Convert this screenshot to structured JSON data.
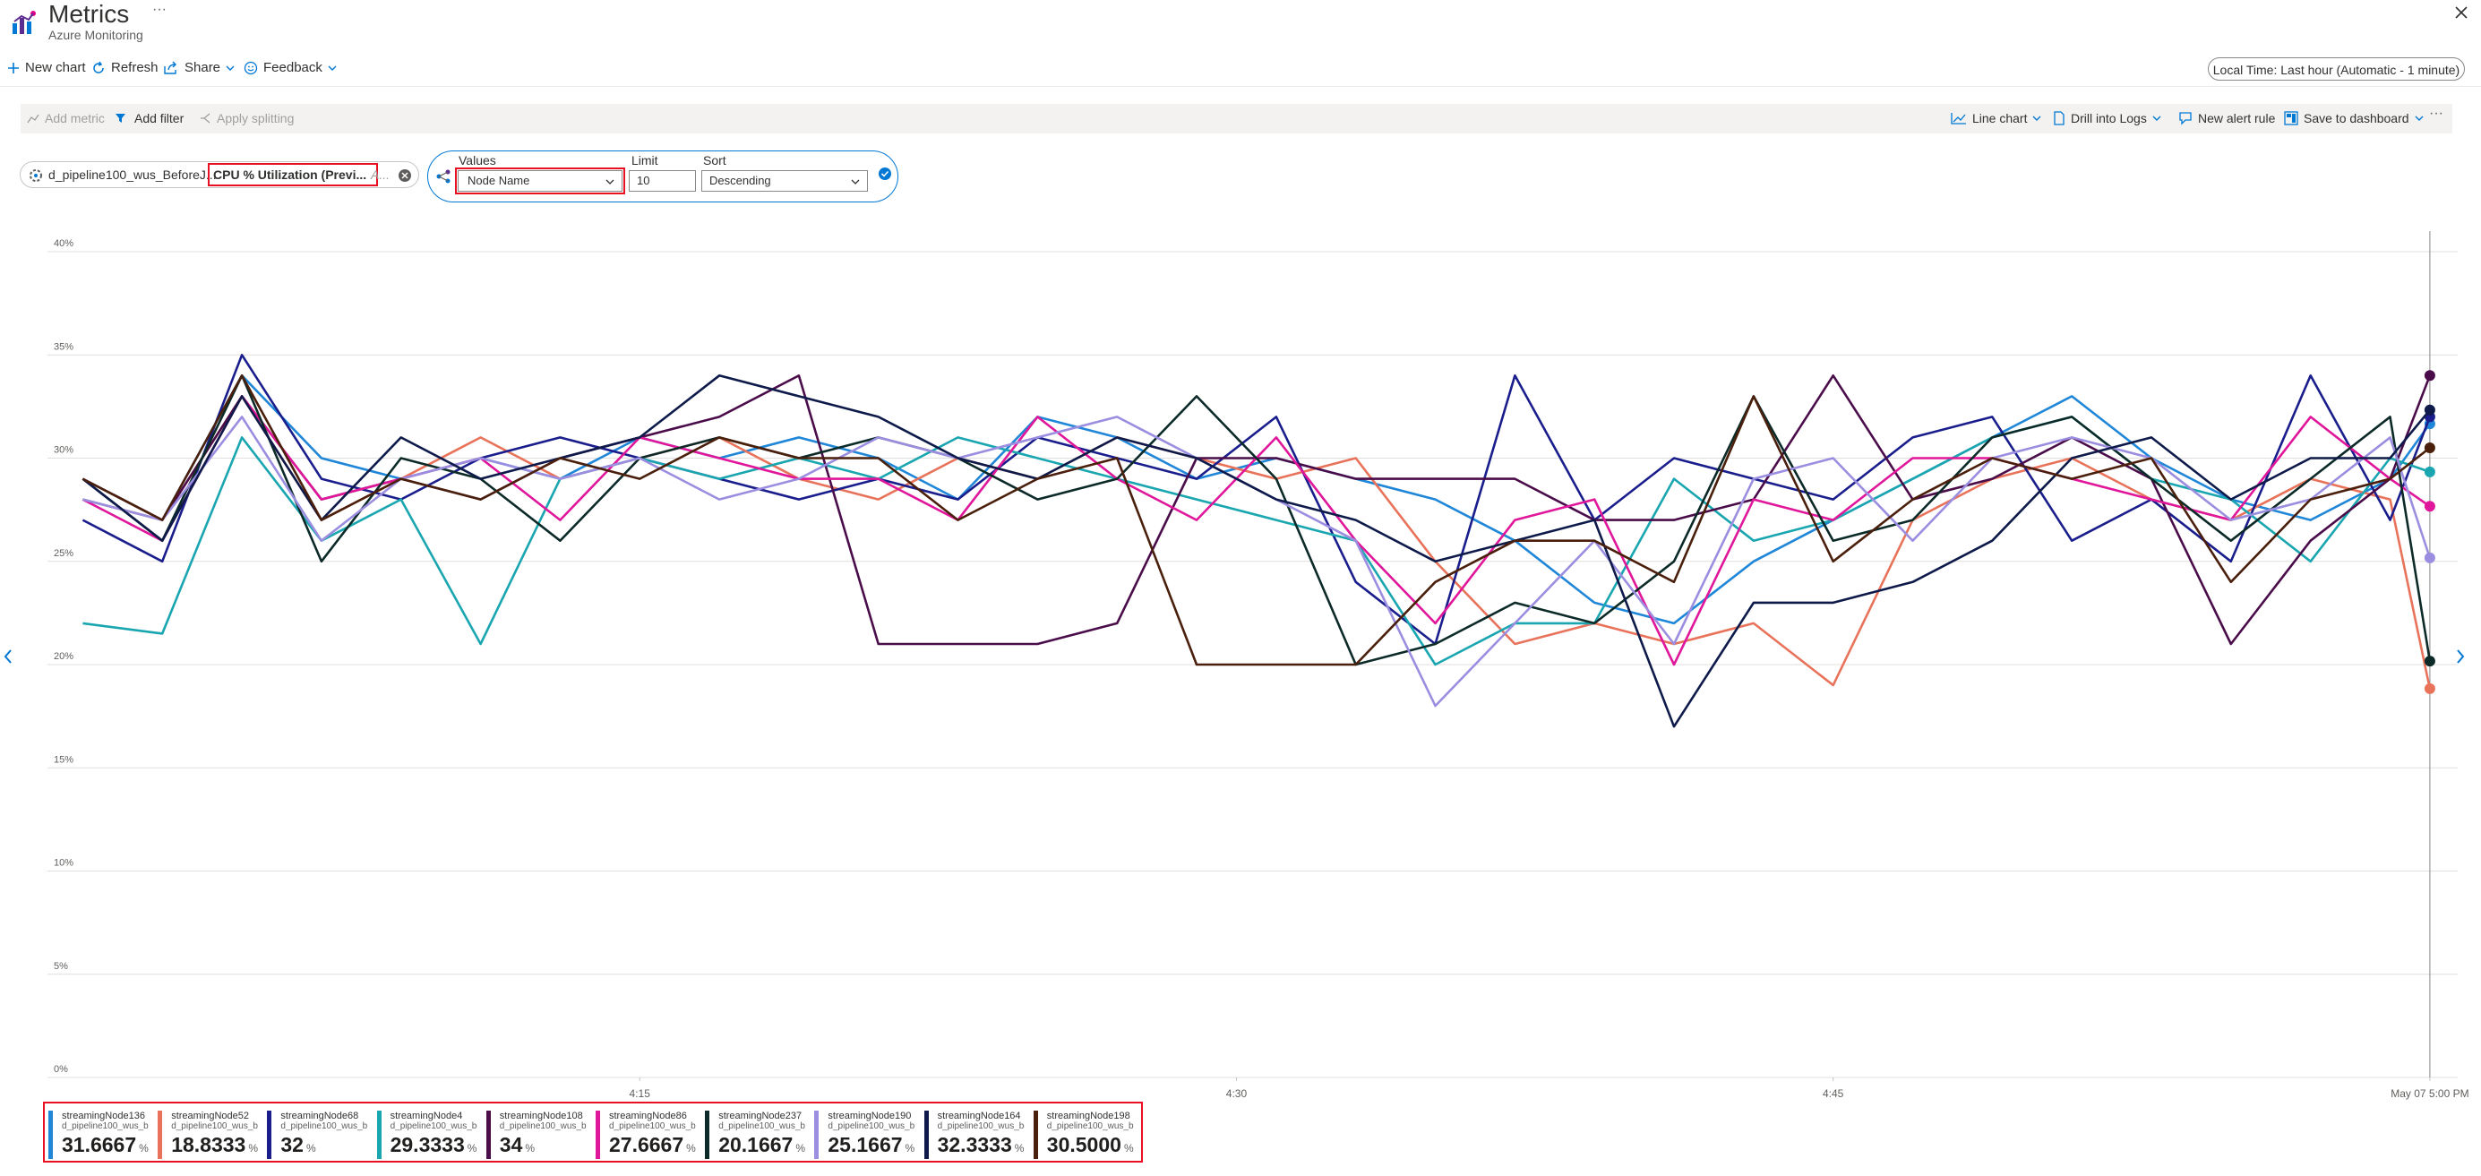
{
  "header": {
    "title": "Metrics",
    "subtitle": "Azure Monitoring"
  },
  "toolbar": {
    "items": [
      "New chart",
      "Refresh",
      "Share",
      "Feedback"
    ],
    "time_range": "Local Time: Last hour (Automatic - 1 minute)"
  },
  "chart_toolbar": {
    "left": [
      "Add metric",
      "Add filter",
      "Apply splitting"
    ],
    "right": [
      "Line chart",
      "Drill into Logs",
      "New alert rule",
      "Save to dashboard"
    ]
  },
  "metric_pill": {
    "resource": "d_pipeline100_wus_BeforeJ...",
    "metric": "CPU % Utilization (Previ...",
    "aggregation": "A..."
  },
  "splitting": {
    "values_label": "Values",
    "values": "Node Name",
    "limit_label": "Limit",
    "limit": "10",
    "sort_label": "Sort",
    "sort": "Descending"
  },
  "chart_data": {
    "type": "line",
    "unit": "%",
    "grid": true,
    "x": [
      1,
      3,
      5,
      7,
      9,
      11,
      13,
      15,
      17,
      19,
      21,
      23,
      25,
      27,
      29,
      31,
      33,
      35,
      37,
      39,
      41,
      43,
      45,
      47,
      49,
      51,
      53,
      55,
      57,
      59,
      60
    ],
    "xlim": [
      0,
      60.7
    ],
    "xticks": [
      {
        "value": 15,
        "label": "4:15"
      },
      {
        "value": 30,
        "label": "4:30"
      },
      {
        "value": 45,
        "label": "4:45"
      },
      {
        "value": 60,
        "label": "May 07 5:00 PM"
      }
    ],
    "ylim": [
      0,
      40
    ],
    "yticks": [
      {
        "value": 0,
        "label": "0%"
      },
      {
        "value": 5,
        "label": "5%"
      },
      {
        "value": 10,
        "label": "10%"
      },
      {
        "value": 15,
        "label": "15%"
      },
      {
        "value": 20,
        "label": "20%"
      },
      {
        "value": 25,
        "label": "25%"
      },
      {
        "value": 30,
        "label": "30%"
      },
      {
        "value": 35,
        "label": "35%"
      },
      {
        "value": 40,
        "label": "40%"
      }
    ],
    "series": [
      {
        "name": "streamingNode136",
        "resource": "d_pipeline100_wus_be...",
        "color": "#1f86d8",
        "latest": "31.6667",
        "values": [
          28,
          27,
          34,
          30,
          29,
          30,
          29,
          31,
          30,
          31,
          30,
          28,
          32,
          31,
          29,
          30,
          29,
          28,
          26,
          23,
          22,
          25,
          27,
          29,
          31,
          33,
          30,
          28,
          27,
          29,
          31.6667
        ]
      },
      {
        "name": "streamingNode52",
        "resource": "d_pipeline100_wus_be...",
        "color": "#e8735a",
        "latest": "18.8333",
        "values": [
          28,
          27,
          33,
          27,
          29,
          31,
          29,
          30,
          31,
          29,
          28,
          30,
          29,
          31,
          30,
          29,
          30,
          25,
          21,
          22,
          21,
          22,
          19,
          27,
          29,
          30,
          28,
          27,
          29,
          28,
          18.8333
        ]
      },
      {
        "name": "streamingNode68",
        "resource": "d_pipeline100_wus_be...",
        "color": "#1a1e8c",
        "latest": "32",
        "values": [
          27,
          25,
          35,
          29,
          28,
          30,
          31,
          30,
          29,
          28,
          29,
          28,
          31,
          30,
          29,
          32,
          24,
          21,
          34,
          27,
          30,
          29,
          28,
          31,
          32,
          26,
          28,
          25,
          34,
          27,
          32
        ]
      },
      {
        "name": "streamingNode4",
        "resource": "d_pipeline100_wus_be...",
        "color": "#1aa6b0",
        "latest": "29.3333",
        "values": [
          22,
          21.5,
          31,
          26,
          28,
          21,
          29,
          30,
          29,
          30,
          29,
          31,
          30,
          29,
          28,
          27,
          26,
          20,
          22,
          22,
          29,
          26,
          27,
          29,
          31,
          32,
          29,
          28,
          25,
          30,
          29.3333
        ]
      },
      {
        "name": "streamingNode108",
        "resource": "d_pipeline100_wus_be...",
        "color": "#4a0d4a",
        "latest": "34",
        "values": [
          29,
          27,
          33,
          28,
          29,
          28,
          30,
          31,
          32,
          34,
          21,
          21,
          21,
          22,
          30,
          30,
          29,
          29,
          29,
          27,
          27,
          28,
          34,
          28,
          29,
          31,
          29,
          21,
          26,
          29,
          34
        ]
      },
      {
        "name": "streamingNode86",
        "resource": "d_pipeline100_wus_be...",
        "color": "#e0169b",
        "latest": "27.6667",
        "values": [
          28,
          26,
          33,
          28,
          29,
          30,
          27,
          31,
          30,
          29,
          29,
          27,
          32,
          29,
          27,
          31,
          26,
          22,
          27,
          28,
          20,
          28,
          27,
          30,
          30,
          29,
          28,
          27,
          32,
          29,
          27.6667
        ]
      },
      {
        "name": "streamingNode237",
        "resource": "d_pipeline100_wus_be...",
        "color": "#0c2a28",
        "latest": "20.1667",
        "values": [
          29,
          26,
          34,
          25,
          30,
          29,
          26,
          30,
          31,
          30,
          31,
          30,
          28,
          29,
          33,
          29,
          20,
          21,
          23,
          22,
          25,
          33,
          26,
          27,
          31,
          32,
          29,
          26,
          29,
          32,
          20.1667
        ]
      },
      {
        "name": "streamingNode190",
        "resource": "d_pipeline100_wus_be...",
        "color": "#9b8ee0",
        "latest": "25.1667",
        "values": [
          28,
          27,
          32,
          26,
          29,
          30,
          29,
          30,
          28,
          29,
          31,
          30,
          31,
          32,
          30,
          28,
          26,
          18,
          22,
          26,
          21,
          29,
          30,
          26,
          30,
          31,
          30,
          27,
          28,
          31,
          25.1667
        ]
      },
      {
        "name": "streamingNode164",
        "resource": "d_pipeline100_wus_be...",
        "color": "#0d1a4a",
        "latest": "32.3333",
        "values": [
          29,
          26,
          33,
          27,
          31,
          29,
          30,
          31,
          34,
          33,
          32,
          30,
          29,
          31,
          30,
          28,
          27,
          25,
          26,
          27,
          17,
          23,
          23,
          24,
          26,
          30,
          31,
          28,
          30,
          30,
          32.3333
        ]
      },
      {
        "name": "streamingNode198",
        "resource": "d_pipeline100_wus_be...",
        "color": "#4a1f0c",
        "latest": "30.5000",
        "values": [
          29,
          27,
          34,
          27,
          29,
          28,
          30,
          29,
          31,
          30,
          30,
          27,
          29,
          30,
          20,
          20,
          20,
          24,
          26,
          26,
          24,
          33,
          25,
          28,
          30,
          29,
          30,
          24,
          28,
          29,
          30.5
        ]
      }
    ]
  }
}
